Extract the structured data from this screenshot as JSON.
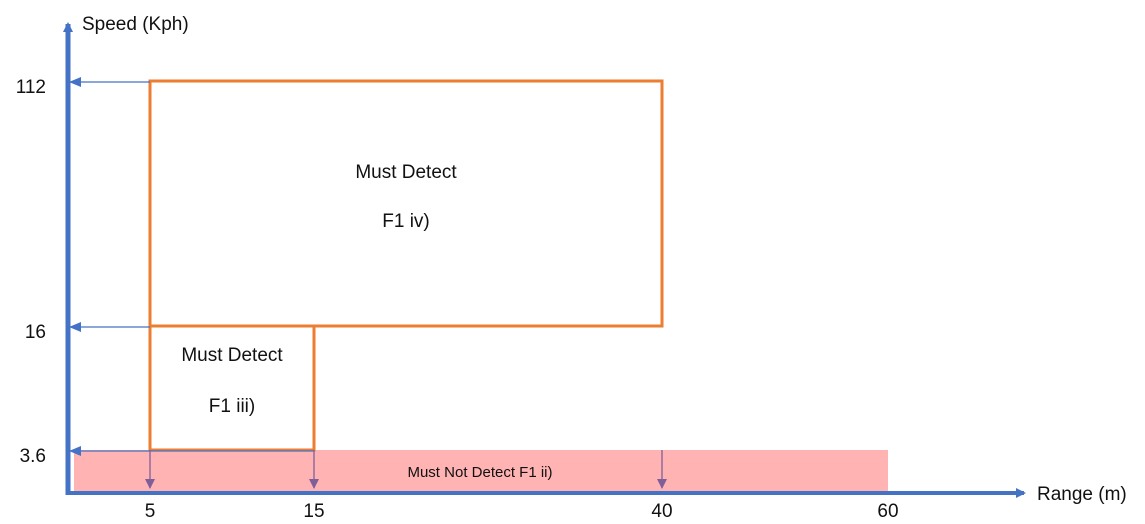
{
  "axes": {
    "y_title": "Speed (Kph)",
    "x_title": "Range (m)",
    "y_ticks": [
      "112",
      "16",
      "3.6"
    ],
    "x_ticks": [
      "5",
      "15",
      "40",
      "60"
    ]
  },
  "zones": {
    "must_not_detect": {
      "label": "Must Not Detect F1 ii)",
      "x_range": [
        0,
        60
      ],
      "y_range": [
        0,
        3.6
      ]
    },
    "f1_iii": {
      "title": "Must Detect",
      "code": "F1 iii)",
      "x_range": [
        5,
        15
      ],
      "y_range": [
        3.6,
        16
      ]
    },
    "f1_iv": {
      "title": "Must Detect",
      "code": "F1 iv)",
      "x_range": [
        5,
        40
      ],
      "y_range": [
        16,
        112
      ]
    }
  },
  "colors": {
    "axis": "#4472c4",
    "zone_border": "#ed7d31",
    "must_not_fill": "#ffb3b3",
    "marker_arrow": "#7f5f9a"
  }
}
